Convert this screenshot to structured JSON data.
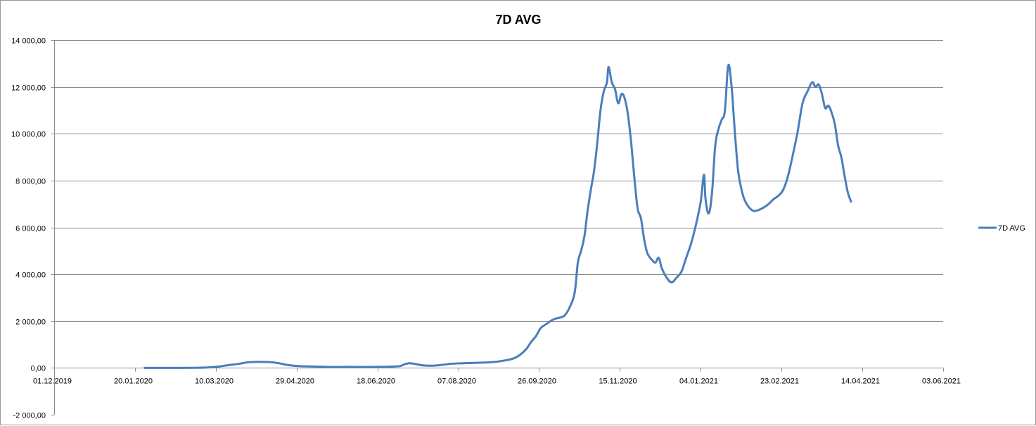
{
  "chart_data": {
    "type": "line",
    "title": "7D AVG",
    "xlabel": "",
    "ylabel": "",
    "x_axis_type": "date",
    "x_tick_labels": [
      "01.12.2019",
      "20.01.2020",
      "10.03.2020",
      "29.04.2020",
      "18.06.2020",
      "07.08.2020",
      "26.09.2020",
      "15.11.2020",
      "04.01.2021",
      "23.02.2021",
      "14.04.2021",
      "03.06.2021"
    ],
    "y_tick_labels": [
      "-2 000,00",
      "0,00",
      "2 000,00",
      "4 000,00",
      "6 000,00",
      "8 000,00",
      "10 000,00",
      "12 000,00",
      "14 000,00"
    ],
    "xlim": [
      "2019-12-01",
      "2021-06-03"
    ],
    "ylim": [
      -2000,
      14000
    ],
    "y_tick_step": 2000,
    "grid": "horizontal major gridlines",
    "legend_position": "right",
    "line_color": "#4a7ebb",
    "series": [
      {
        "name": "7D AVG",
        "points": [
          [
            "2020-01-26",
            0
          ],
          [
            "2020-02-10",
            0
          ],
          [
            "2020-02-25",
            5
          ],
          [
            "2020-03-05",
            20
          ],
          [
            "2020-03-12",
            60
          ],
          [
            "2020-03-18",
            120
          ],
          [
            "2020-03-24",
            170
          ],
          [
            "2020-03-30",
            240
          ],
          [
            "2020-04-05",
            260
          ],
          [
            "2020-04-12",
            250
          ],
          [
            "2020-04-18",
            200
          ],
          [
            "2020-04-24",
            120
          ],
          [
            "2020-04-30",
            80
          ],
          [
            "2020-05-10",
            60
          ],
          [
            "2020-05-20",
            40
          ],
          [
            "2020-06-01",
            45
          ],
          [
            "2020-06-10",
            40
          ],
          [
            "2020-06-20",
            45
          ],
          [
            "2020-06-28",
            60
          ],
          [
            "2020-07-02",
            80
          ],
          [
            "2020-07-05",
            160
          ],
          [
            "2020-07-08",
            200
          ],
          [
            "2020-07-12",
            160
          ],
          [
            "2020-07-16",
            110
          ],
          [
            "2020-07-22",
            95
          ],
          [
            "2020-07-28",
            130
          ],
          [
            "2020-08-03",
            180
          ],
          [
            "2020-08-10",
            200
          ],
          [
            "2020-08-20",
            220
          ],
          [
            "2020-08-30",
            260
          ],
          [
            "2020-09-05",
            320
          ],
          [
            "2020-09-10",
            400
          ],
          [
            "2020-09-14",
            550
          ],
          [
            "2020-09-18",
            800
          ],
          [
            "2020-09-21",
            1100
          ],
          [
            "2020-09-24",
            1350
          ],
          [
            "2020-09-27",
            1700
          ],
          [
            "2020-09-30",
            1850
          ],
          [
            "2020-10-03",
            2000
          ],
          [
            "2020-10-06",
            2100
          ],
          [
            "2020-10-09",
            2150
          ],
          [
            "2020-10-12",
            2250
          ],
          [
            "2020-10-15",
            2600
          ],
          [
            "2020-10-18",
            3200
          ],
          [
            "2020-10-20",
            4500
          ],
          [
            "2020-10-22",
            5000
          ],
          [
            "2020-10-24",
            5600
          ],
          [
            "2020-10-26",
            6700
          ],
          [
            "2020-10-28",
            7600
          ],
          [
            "2020-10-30",
            8400
          ],
          [
            "2020-11-01",
            9600
          ],
          [
            "2020-11-03",
            11000
          ],
          [
            "2020-11-05",
            11800
          ],
          [
            "2020-11-07",
            12200
          ],
          [
            "2020-11-08",
            12850
          ],
          [
            "2020-11-10",
            12200
          ],
          [
            "2020-11-12",
            11900
          ],
          [
            "2020-11-14",
            11300
          ],
          [
            "2020-11-16",
            11700
          ],
          [
            "2020-11-18",
            11500
          ],
          [
            "2020-11-20",
            10800
          ],
          [
            "2020-11-22",
            9600
          ],
          [
            "2020-11-24",
            8100
          ],
          [
            "2020-11-26",
            6800
          ],
          [
            "2020-11-28",
            6400
          ],
          [
            "2020-11-30",
            5500
          ],
          [
            "2020-12-02",
            4900
          ],
          [
            "2020-12-05",
            4600
          ],
          [
            "2020-12-07",
            4500
          ],
          [
            "2020-12-09",
            4700
          ],
          [
            "2020-12-11",
            4250
          ],
          [
            "2020-12-14",
            3850
          ],
          [
            "2020-12-17",
            3650
          ],
          [
            "2020-12-20",
            3850
          ],
          [
            "2020-12-23",
            4100
          ],
          [
            "2020-12-26",
            4700
          ],
          [
            "2020-12-29",
            5300
          ],
          [
            "2021-01-01",
            6100
          ],
          [
            "2021-01-04",
            7100
          ],
          [
            "2021-01-06",
            8250
          ],
          [
            "2021-01-07",
            7200
          ],
          [
            "2021-01-09",
            6600
          ],
          [
            "2021-01-11",
            7500
          ],
          [
            "2021-01-13",
            9500
          ],
          [
            "2021-01-15",
            10200
          ],
          [
            "2021-01-17",
            10600
          ],
          [
            "2021-01-19",
            11000
          ],
          [
            "2021-01-21",
            12900
          ],
          [
            "2021-01-23",
            12100
          ],
          [
            "2021-01-25",
            10200
          ],
          [
            "2021-01-27",
            8500
          ],
          [
            "2021-01-29",
            7700
          ],
          [
            "2021-01-31",
            7200
          ],
          [
            "2021-02-03",
            6850
          ],
          [
            "2021-02-06",
            6700
          ],
          [
            "2021-02-09",
            6750
          ],
          [
            "2021-02-12",
            6850
          ],
          [
            "2021-02-15",
            7000
          ],
          [
            "2021-02-18",
            7200
          ],
          [
            "2021-02-21",
            7350
          ],
          [
            "2021-02-24",
            7600
          ],
          [
            "2021-02-27",
            8200
          ],
          [
            "2021-03-02",
            9100
          ],
          [
            "2021-03-05",
            10100
          ],
          [
            "2021-03-08",
            11300
          ],
          [
            "2021-03-11",
            11800
          ],
          [
            "2021-03-14",
            12200
          ],
          [
            "2021-03-16",
            12000
          ],
          [
            "2021-03-18",
            12100
          ],
          [
            "2021-03-20",
            11700
          ],
          [
            "2021-03-22",
            11100
          ],
          [
            "2021-03-24",
            11200
          ],
          [
            "2021-03-26",
            10900
          ],
          [
            "2021-03-28",
            10400
          ],
          [
            "2021-03-30",
            9500
          ],
          [
            "2021-04-01",
            9000
          ],
          [
            "2021-04-03",
            8200
          ],
          [
            "2021-04-05",
            7500
          ],
          [
            "2021-04-07",
            7100
          ]
        ]
      }
    ]
  }
}
